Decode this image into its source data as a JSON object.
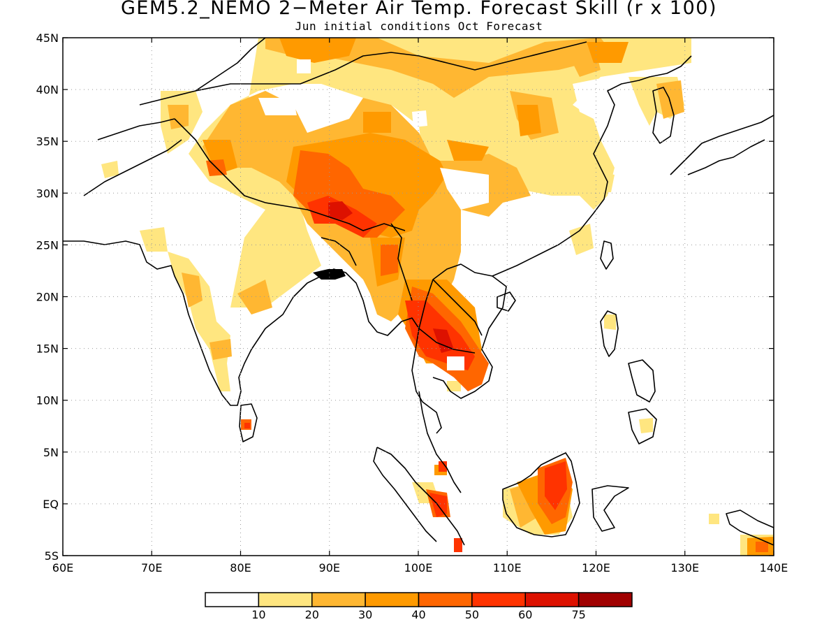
{
  "title": "GEM5.2_NEMO 2−Meter Air Temp. Forecast Skill (r x 100)",
  "subtitle": "Jun initial conditions  Oct Forecast",
  "map": {
    "lon_range": [
      60,
      140
    ],
    "lat_range": [
      -5,
      45
    ],
    "grid": true,
    "lon_ticks": [
      {
        "value": 60,
        "label": "60E"
      },
      {
        "value": 70,
        "label": "70E"
      },
      {
        "value": 80,
        "label": "80E"
      },
      {
        "value": 90,
        "label": "90E"
      },
      {
        "value": 100,
        "label": "100E"
      },
      {
        "value": 110,
        "label": "110E"
      },
      {
        "value": 120,
        "label": "120E"
      },
      {
        "value": 130,
        "label": "130E"
      },
      {
        "value": 140,
        "label": "140E"
      }
    ],
    "lat_ticks": [
      {
        "value": 45,
        "label": "45N"
      },
      {
        "value": 40,
        "label": "40N"
      },
      {
        "value": 35,
        "label": "35N"
      },
      {
        "value": 30,
        "label": "30N"
      },
      {
        "value": 25,
        "label": "25N"
      },
      {
        "value": 20,
        "label": "20N"
      },
      {
        "value": 15,
        "label": "15N"
      },
      {
        "value": 10,
        "label": "10N"
      },
      {
        "value": 5,
        "label": "5N"
      },
      {
        "value": 0,
        "label": "EQ"
      },
      {
        "value": -5,
        "label": "5S"
      }
    ]
  },
  "colorbar": {
    "colors": [
      "#ffffff",
      "#ffe680",
      "#ffb732",
      "#ff9a00",
      "#ff6600",
      "#ff3300",
      "#dd1100",
      "#a00000"
    ],
    "labels": [
      "10",
      "20",
      "30",
      "40",
      "50",
      "60",
      "75"
    ]
  }
}
